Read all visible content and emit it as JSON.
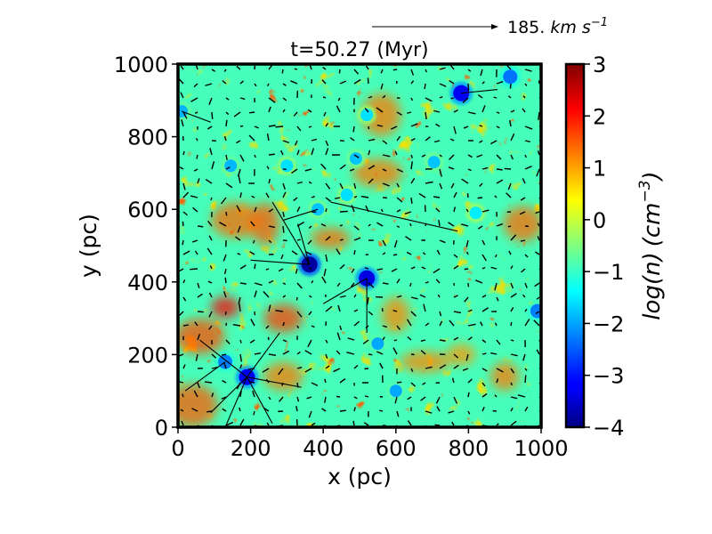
{
  "chart_data": {
    "type": "heatmap",
    "title": "t=50.27 (Myr)",
    "xlabel": "x (pc)",
    "ylabel": "y (pc)",
    "xlim": [
      0,
      1000
    ],
    "ylim": [
      0,
      1000
    ],
    "x_ticks": [
      "0",
      "200",
      "400",
      "600",
      "800",
      "1000"
    ],
    "y_ticks": [
      "0",
      "200",
      "400",
      "600",
      "800",
      "1000"
    ],
    "colorbar": {
      "label": "log(n) (cm⁻³)",
      "label_parts": [
        "log(n)",
        "(cm",
        "−3",
        ")"
      ],
      "range": [
        -4,
        3
      ],
      "ticks": [
        "−4",
        "−3",
        "−2",
        "−1",
        "0",
        "1",
        "2",
        "3"
      ],
      "colormap": "jet"
    },
    "reference_vector": {
      "label": "185. km s⁻¹",
      "text_parts": [
        "185. ",
        "km s",
        "−1"
      ]
    },
    "background_level": -0.9,
    "low_density_bubbles": [
      {
        "x": 362,
        "y": 448,
        "level": -3.8
      },
      {
        "x": 190,
        "y": 138,
        "level": -3.3
      },
      {
        "x": 130,
        "y": 180,
        "level": -2.3
      },
      {
        "x": 145,
        "y": 720,
        "level": -1.9
      },
      {
        "x": 10,
        "y": 870,
        "level": -1.9
      },
      {
        "x": 520,
        "y": 410,
        "level": -3.4
      },
      {
        "x": 780,
        "y": 920,
        "level": -3.3
      },
      {
        "x": 915,
        "y": 965,
        "level": -2.4
      },
      {
        "x": 705,
        "y": 730,
        "level": -1.8
      },
      {
        "x": 490,
        "y": 740,
        "level": -1.8
      },
      {
        "x": 990,
        "y": 320,
        "level": -2.3
      },
      {
        "x": 550,
        "y": 230,
        "level": -2.0
      },
      {
        "x": 600,
        "y": 100,
        "level": -2.0
      },
      {
        "x": 385,
        "y": 600,
        "level": -1.8
      },
      {
        "x": 520,
        "y": 860,
        "level": -1.6
      },
      {
        "x": 300,
        "y": 720,
        "level": -1.6
      },
      {
        "x": 465,
        "y": 640,
        "level": -1.6
      },
      {
        "x": 820,
        "y": 590,
        "level": -1.5
      }
    ],
    "dense_regions": [
      {
        "x": 130,
        "y": 330,
        "level": 2.1
      },
      {
        "x": 290,
        "y": 300,
        "level": 1.7
      },
      {
        "x": 60,
        "y": 250,
        "level": 1.6
      },
      {
        "x": 240,
        "y": 560,
        "level": 1.5
      },
      {
        "x": 420,
        "y": 520,
        "level": 1.4
      },
      {
        "x": 550,
        "y": 700,
        "level": 1.3
      },
      {
        "x": 600,
        "y": 310,
        "level": 1.2
      },
      {
        "x": 560,
        "y": 860,
        "level": 1.3
      },
      {
        "x": 680,
        "y": 180,
        "level": 1.2
      },
      {
        "x": 900,
        "y": 140,
        "level": 1.3
      },
      {
        "x": 950,
        "y": 560,
        "level": 1.4
      },
      {
        "x": 40,
        "y": 60,
        "level": 1.5
      },
      {
        "x": 780,
        "y": 200,
        "level": 1.1
      },
      {
        "x": 290,
        "y": 140,
        "level": 1.3
      },
      {
        "x": 160,
        "y": 570,
        "level": 1.4
      }
    ]
  },
  "colors": {
    "jet": [
      "#000080",
      "#0000ff",
      "#00ffff",
      "#ffff00",
      "#ff0000",
      "#800000"
    ]
  }
}
